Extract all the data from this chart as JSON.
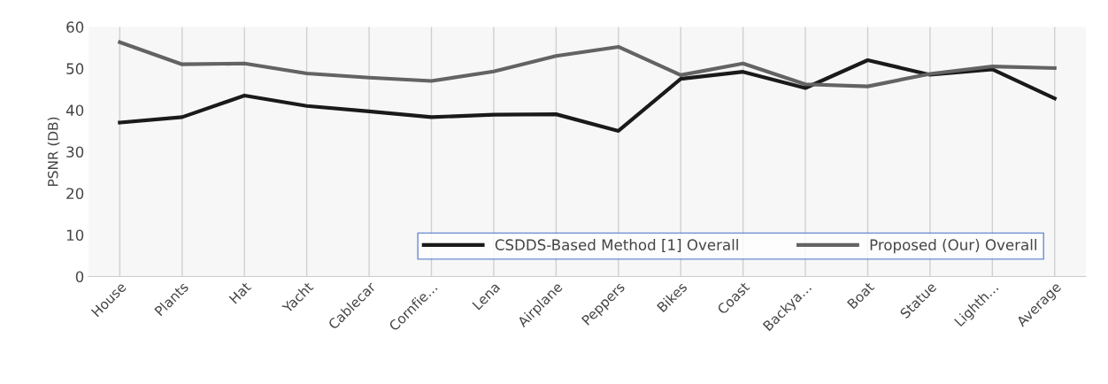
{
  "chart_data": {
    "type": "line",
    "ylabel": "PSNR (DB)",
    "categories": [
      "House",
      "Plants",
      "Hat",
      "Yacht",
      "Cablecar",
      "Cornfie…",
      "Lena",
      "Airplane",
      "Peppers",
      "Bikes",
      "Coast",
      "Backya…",
      "Boat",
      "Statue",
      "Lighth…",
      "Average"
    ],
    "series": [
      {
        "name": "CSDDS-Based Method [1] Overall",
        "color": "#1a1a1a",
        "values": [
          37,
          38.3,
          43.5,
          41,
          39.7,
          38.3,
          38.9,
          39,
          35,
          47.5,
          49.2,
          45.3,
          52,
          48.5,
          49.8,
          42.8
        ]
      },
      {
        "name": "Proposed (Our) Overall",
        "color": "#636363",
        "values": [
          56.3,
          51,
          51.2,
          48.8,
          47.8,
          47,
          49.3,
          53,
          55.2,
          48.4,
          51.2,
          46.2,
          45.7,
          48.7,
          50.5,
          50.1
        ]
      }
    ],
    "ylim": [
      0,
      60
    ],
    "yticks": [
      0,
      10,
      20,
      30,
      40,
      50,
      60
    ],
    "grid": "x",
    "legend": "bottom right",
    "marker": "none",
    "line_style": "solid"
  }
}
